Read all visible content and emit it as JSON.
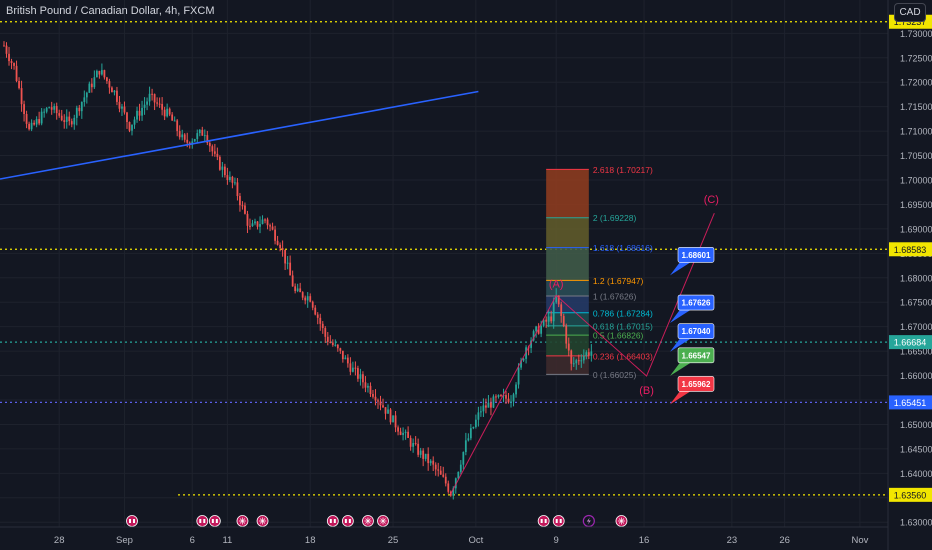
{
  "header": {
    "title": "British Pound / Canadian Dollar, 4h, FXCM",
    "currency": "CAD"
  },
  "colors": {
    "background": "#131722",
    "grid": "#1e222d",
    "text": "#b2b5be",
    "up": "#26a69a",
    "down": "#ef5350",
    "trendline": "#2962ff",
    "dotted_level": "#f2e600",
    "blue_level": "#5b5fea",
    "wave": "#e91e63"
  },
  "y_axis": {
    "min": 1.628,
    "max": 1.736,
    "ticks": [
      "1.73000",
      "1.72500",
      "1.72000",
      "1.71500",
      "1.71000",
      "1.70500",
      "1.70000",
      "1.69500",
      "1.69000",
      "1.68500",
      "1.68000",
      "1.67500",
      "1.67000",
      "1.66500",
      "1.66000",
      "1.65500",
      "1.65000",
      "1.64500",
      "1.64000",
      "1.63500",
      "1.63000"
    ]
  },
  "x_axis": {
    "ticks": [
      {
        "label": "28",
        "bar": 22
      },
      {
        "label": "Sep",
        "bar": 48
      },
      {
        "label": "6",
        "bar": 75
      },
      {
        "label": "11",
        "bar": 89
      },
      {
        "label": "18",
        "bar": 122
      },
      {
        "label": "25",
        "bar": 155
      },
      {
        "label": "Oct",
        "bar": 188
      },
      {
        "label": "9",
        "bar": 220
      },
      {
        "label": "16",
        "bar": 255
      },
      {
        "label": "23",
        "bar": 290
      },
      {
        "label": "26",
        "bar": 311
      },
      {
        "label": "Nov",
        "bar": 341
      }
    ]
  },
  "price_labels": [
    {
      "text": "1.73237",
      "value": 1.73237,
      "color": "#f2e600",
      "fg": "#131722"
    },
    {
      "text": "1.68583",
      "value": 1.68583,
      "color": "#f2e600",
      "fg": "#131722"
    },
    {
      "text": "1.66684",
      "value": 1.66684,
      "color": "#26a69a",
      "fg": "#ffffff"
    },
    {
      "text": "1.65451",
      "value": 1.65451,
      "color": "#2962ff",
      "fg": "#ffffff"
    },
    {
      "text": "1.63560",
      "value": 1.6356,
      "color": "#f2e600",
      "fg": "#131722"
    }
  ],
  "horizontal_levels": [
    {
      "value": 1.73237,
      "color": "#f2e600",
      "style": "dotted",
      "x0": 0
    },
    {
      "value": 1.68583,
      "color": "#f2e600",
      "style": "dotted",
      "x0": 0
    },
    {
      "value": 1.66684,
      "color": "#26a69a",
      "style": "dotted",
      "x0": 0
    },
    {
      "value": 1.65451,
      "color": "#5b5fea",
      "style": "dotted",
      "x0": 0
    },
    {
      "value": 1.6356,
      "color": "#f2e600",
      "style": "dotted",
      "x0": 178
    }
  ],
  "trendline": {
    "x1": 0,
    "y1": 1.7002,
    "x2": 189,
    "y2": 1.7181
  },
  "fib": {
    "x_start": 216,
    "x_end": 233,
    "levels": [
      {
        "ratio": "2.618",
        "text": "2.618 (1.70217)",
        "value": 1.70217,
        "color": "#f23645",
        "fill": "#8c3b1f"
      },
      {
        "ratio": "2",
        "text": "2 (1.69228)",
        "value": 1.69228,
        "color": "#26a69a",
        "fill": "#5f5a2a"
      },
      {
        "ratio": "1.618",
        "text": "1.618 (1.68616)",
        "value": 1.68616,
        "color": "#2962ff",
        "fill": "#3f5a48"
      },
      {
        "ratio": "1.2",
        "text": "1.2 (1.67947)",
        "value": 1.67947,
        "color": "#ff9800",
        "fill": "#2a4b55"
      },
      {
        "ratio": "1",
        "text": "1 (1.67626)",
        "value": 1.67626,
        "color": "#787b86",
        "fill": "#253a66"
      },
      {
        "ratio": "0.786",
        "text": "0.786 (1.67284)",
        "value": 1.67284,
        "color": "#00bcd4",
        "fill": "#1d4a4f"
      },
      {
        "ratio": "0.618",
        "text": "0.618 (1.67015)",
        "value": 1.67015,
        "color": "#26a69a",
        "fill": "#1f4538"
      },
      {
        "ratio": "0.5",
        "text": "0.5 (1.66826)",
        "value": 1.66826,
        "color": "#4caf50",
        "fill": "#23432e"
      },
      {
        "ratio": "0.236",
        "text": "0.236 (1.66403)",
        "value": 1.66403,
        "color": "#f23645",
        "fill": "#3d2a2c"
      },
      {
        "ratio": "0",
        "text": "0 (1.66025)",
        "value": 1.66025,
        "color": "#787b86",
        "fill": ""
      }
    ]
  },
  "callouts": [
    {
      "text": "1.68601",
      "value": 1.68601,
      "color": "#2962ff"
    },
    {
      "text": "1.67626",
      "value": 1.67626,
      "color": "#2962ff"
    },
    {
      "text": "1.67040",
      "value": 1.6704,
      "color": "#2962ff"
    },
    {
      "text": "1.66547",
      "value": 1.66547,
      "color": "#4caf50"
    },
    {
      "text": "1.65962",
      "value": 1.65962,
      "color": "#f23645"
    }
  ],
  "waves": [
    {
      "label": "(A)",
      "bar": 220,
      "value": 1.6764
    },
    {
      "label": "(B)",
      "bar": 256,
      "value": 1.6599
    },
    {
      "label": "(C)",
      "bar": 283,
      "value": 1.6932
    }
  ],
  "event_icons": [
    {
      "bar": 51,
      "type": "flag"
    },
    {
      "bar": 79,
      "type": "flag"
    },
    {
      "bar": 84,
      "type": "flag"
    },
    {
      "bar": 95,
      "type": "globe"
    },
    {
      "bar": 103,
      "type": "globe"
    },
    {
      "bar": 131,
      "type": "flag"
    },
    {
      "bar": 137,
      "type": "flag"
    },
    {
      "bar": 145,
      "type": "globe"
    },
    {
      "bar": 151,
      "type": "globe"
    },
    {
      "bar": 215,
      "type": "flag"
    },
    {
      "bar": 221,
      "type": "flag"
    },
    {
      "bar": 233,
      "type": "bolt"
    },
    {
      "bar": 246,
      "type": "globe"
    }
  ]
}
